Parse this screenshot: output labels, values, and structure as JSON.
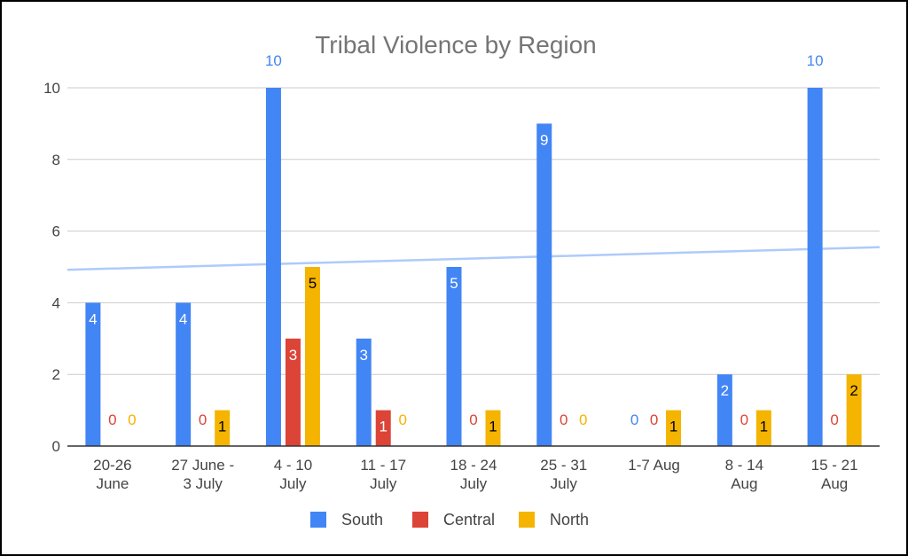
{
  "chart_data": {
    "type": "bar",
    "title": "Tribal Violence by Region",
    "xlabel": "",
    "ylabel": "",
    "ylim": [
      0,
      10
    ],
    "yticks": [
      0,
      2,
      4,
      6,
      8,
      10
    ],
    "grid": true,
    "legend_position": "bottom",
    "categories": [
      [
        "20-26",
        "June"
      ],
      [
        "27 June -",
        "3 July"
      ],
      [
        "4 - 10",
        "July"
      ],
      [
        "11 - 17",
        "July"
      ],
      [
        "18 - 24",
        "July"
      ],
      [
        "25 - 31",
        "July"
      ],
      [
        "1-7 Aug"
      ],
      [
        "8 - 14",
        "Aug"
      ],
      [
        "15 - 21",
        "Aug"
      ]
    ],
    "series": [
      {
        "name": "South",
        "color": "#4285f4",
        "values": [
          4,
          4,
          10,
          3,
          5,
          9,
          0,
          2,
          10
        ]
      },
      {
        "name": "Central",
        "color": "#db4437",
        "values": [
          0,
          0,
          3,
          1,
          0,
          0,
          0,
          0,
          0
        ]
      },
      {
        "name": "North",
        "color": "#f4b400",
        "values": [
          0,
          1,
          5,
          0,
          1,
          0,
          1,
          1,
          2
        ]
      }
    ],
    "trendline": {
      "series": "South",
      "color": "#aecbfa",
      "start_value": 4.92,
      "end_value": 5.55
    }
  }
}
